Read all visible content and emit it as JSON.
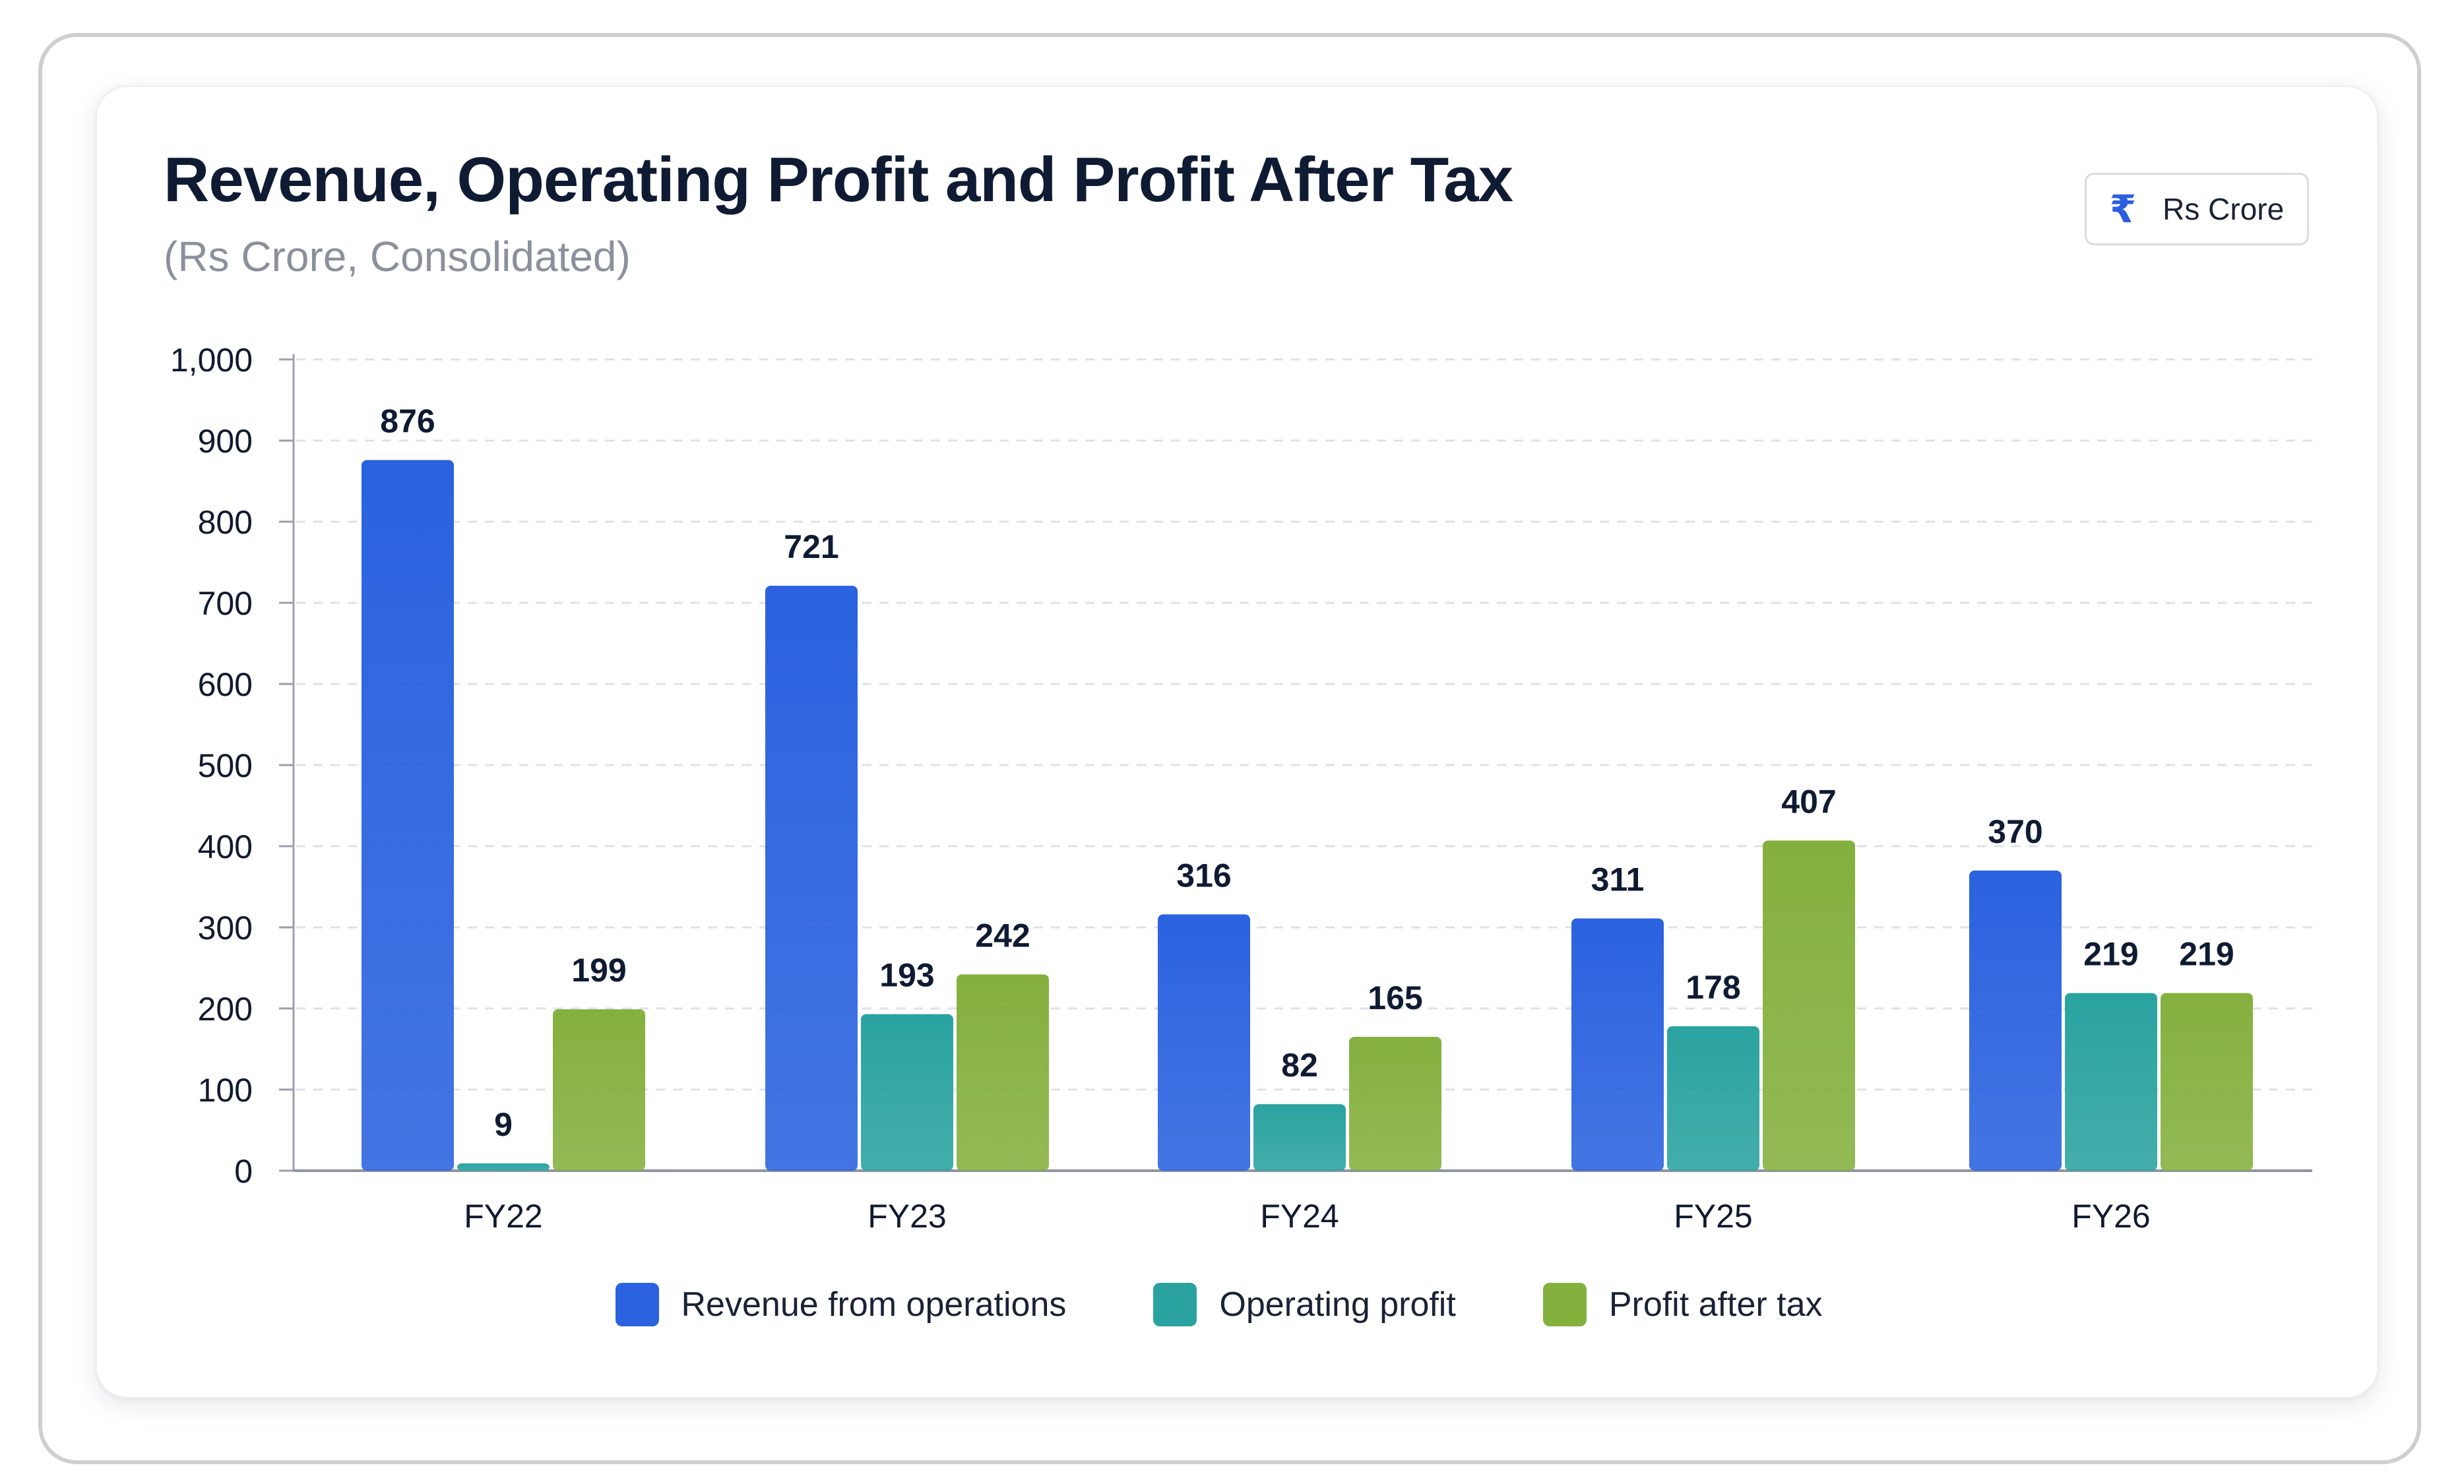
{
  "header": {
    "title": "Revenue, Operating Profit and Profit After Tax",
    "subtitle": "(Rs Crore, Consolidated)"
  },
  "unit_badge": {
    "icon": "rupee-icon",
    "label": "Rs Crore"
  },
  "colors": {
    "revenue": "#2a62df",
    "operating": "#2aa3a0",
    "pat": "#84b03e"
  },
  "chart_data": {
    "type": "bar",
    "title": "Revenue, Operating Profit and Profit After Tax",
    "subtitle": "(Rs Crore, Consolidated)",
    "categories": [
      "FY22",
      "FY23",
      "FY24",
      "FY25",
      "FY26"
    ],
    "series": [
      {
        "name": "Revenue from operations",
        "values": [
          876,
          721,
          316,
          311,
          370
        ]
      },
      {
        "name": "Operating profit",
        "values": [
          9,
          193,
          82,
          178,
          219
        ]
      },
      {
        "name": "Profit after tax",
        "values": [
          199,
          242,
          165,
          407,
          219
        ]
      }
    ],
    "ylim": [
      0,
      1000
    ],
    "yticks": [
      "0",
      "100",
      "200",
      "300",
      "400",
      "500",
      "600",
      "700",
      "800",
      "900",
      "1,000"
    ],
    "grid": true,
    "legend": "bottom-center"
  }
}
